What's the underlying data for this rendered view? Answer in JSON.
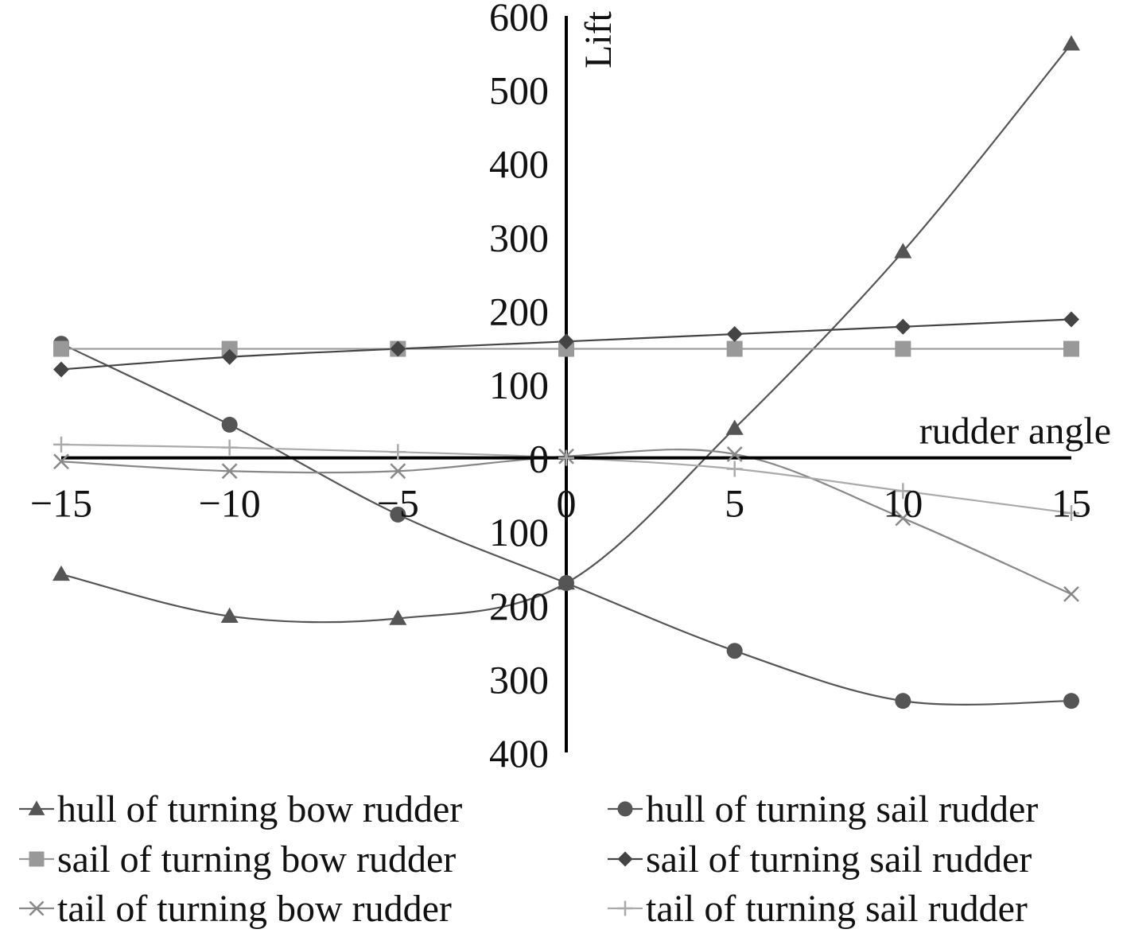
{
  "chart_data": {
    "type": "line",
    "title": "",
    "xlabel": "rudder angle",
    "ylabel": "Lift",
    "x": [
      -15,
      -10,
      -5,
      0,
      5,
      10,
      15
    ],
    "xlim": [
      -15,
      15
    ],
    "ylim": [
      -400,
      600
    ],
    "x_ticks": [
      -15,
      -10,
      -5,
      0,
      5,
      10,
      15
    ],
    "x_tick_labels": [
      "−15",
      "−10",
      "−5",
      "0",
      "5",
      "10",
      "15"
    ],
    "y_ticks": [
      600,
      500,
      400,
      300,
      200,
      100,
      0,
      -100,
      -200,
      -300,
      -400
    ],
    "y_tick_labels": [
      "600",
      "500",
      "400",
      "300",
      "200",
      "100",
      "0",
      "100",
      "200",
      "300",
      "400"
    ],
    "grid": false,
    "legend_position": "bottom",
    "series": [
      {
        "name": "hull of turning bow rudder",
        "marker": "triangle",
        "color": "#555555",
        "values": [
          -158,
          -215,
          -218,
          -170,
          40,
          280,
          562
        ]
      },
      {
        "name": "hull of turning sail rudder",
        "marker": "circle",
        "color": "#555555",
        "values": [
          155,
          45,
          -77,
          -170,
          -262,
          -330,
          -330
        ]
      },
      {
        "name": "sail of turning bow rudder",
        "marker": "square",
        "color": "#999999",
        "values": [
          148,
          148,
          148,
          148,
          148,
          148,
          148
        ]
      },
      {
        "name": "sail of turning sail rudder",
        "marker": "diamond",
        "color": "#444444",
        "values": [
          120,
          137,
          148,
          158,
          168,
          178,
          188
        ]
      },
      {
        "name": "tail of turning bow rudder",
        "marker": "x",
        "color": "#888888",
        "values": [
          -5,
          -18,
          -18,
          2,
          5,
          -82,
          -185
        ]
      },
      {
        "name": "tail of turning sail rudder",
        "marker": "plus",
        "color": "#aaaaaa",
        "values": [
          18,
          14,
          8,
          0,
          -15,
          -45,
          -75
        ]
      }
    ]
  }
}
